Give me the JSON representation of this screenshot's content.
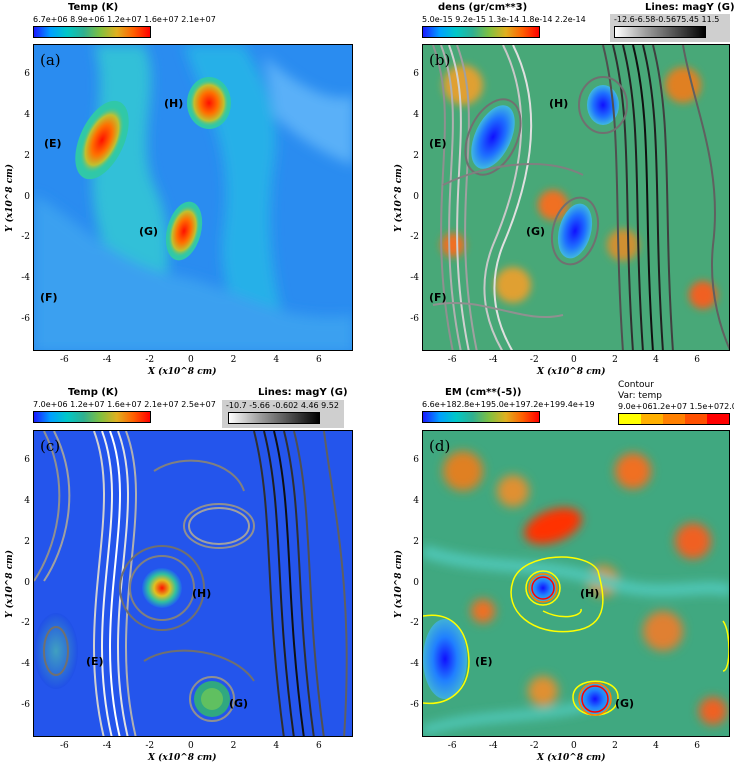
{
  "chart_data": [
    {
      "type": "heatmap",
      "panel_label": "(a)",
      "colorbar": {
        "title": "Temp (K)",
        "ticks": "6.7e+06 8.9e+06 1.2e+07 1.6e+07 2.1e+07"
      },
      "regions": [
        "(H)",
        "(E)",
        "(G)",
        "(F)"
      ],
      "xlabel": "X  (x10^8 cm)",
      "ylabel": "Y  (x10^8 cm)",
      "xticks": [
        "-6",
        "-4",
        "-2",
        "0",
        "2",
        "4",
        "6"
      ],
      "yticks": [
        "6",
        "4",
        "2",
        "0",
        "-2",
        "-4",
        "-6"
      ],
      "xlim": [
        -7.5,
        7.5
      ],
      "ylim": [
        -7.5,
        7.5
      ]
    },
    {
      "type": "heatmap",
      "panel_label": "(b)",
      "colorbar": {
        "title": "dens (gr/cm**3)",
        "ticks": "5.0e-15 9.2e-15 1.3e-14 1.8e-14 2.2e-14"
      },
      "lines_bar": {
        "title": "Lines: magY (G)",
        "ticks": "-12.6-6.58-0.5675.45 11.5"
      },
      "regions": [
        "(H)",
        "(E)",
        "(G)",
        "(F)"
      ],
      "xlabel": "X  (x10^8 cm)",
      "ylabel": "Y  (x10^8 cm)",
      "xticks": [
        "-6",
        "-4",
        "-2",
        "0",
        "2",
        "4",
        "6"
      ],
      "yticks": [
        "6",
        "4",
        "2",
        "0",
        "-2",
        "-4",
        "-6"
      ],
      "xlim": [
        -7.5,
        7.5
      ],
      "ylim": [
        -7.5,
        7.5
      ]
    },
    {
      "type": "heatmap",
      "panel_label": "(c)",
      "colorbar": {
        "title": "Temp (K)",
        "ticks": "7.0e+06 1.2e+07 1.6e+07 2.1e+07 2.5e+07"
      },
      "lines_bar": {
        "title": "Lines: magY (G)",
        "ticks": "-10.7 -5.66 -0.602 4.46 9.52"
      },
      "regions": [
        "(H)",
        "(E)",
        "(G)"
      ],
      "xlabel": "X  (x10^8 cm)",
      "ylabel": "Y  (x10^8 cm)",
      "xticks": [
        "-6",
        "-4",
        "-2",
        "0",
        "2",
        "4",
        "6"
      ],
      "yticks": [
        "6",
        "4",
        "2",
        "0",
        "-2",
        "-4",
        "-6"
      ],
      "xlim": [
        -7.5,
        7.5
      ],
      "ylim": [
        -7.5,
        7.5
      ]
    },
    {
      "type": "heatmap",
      "panel_label": "(d)",
      "colorbar": {
        "title": "EM (cm**(-5))",
        "ticks": "6.6e+182.8e+195.0e+197.2e+199.4e+19"
      },
      "contour_bar": {
        "title": "Contour",
        "subtitle": "Var: temp",
        "ticks": "9.0e+061.2e+07 1.5e+072.0e+07",
        "colors": [
          "#ffff00",
          "#ffb000",
          "#ff8000",
          "#ff5000",
          "#ff0000"
        ]
      },
      "regions": [
        "(H)",
        "(E)",
        "(G)"
      ],
      "xlabel": "X  (x10^8 cm)",
      "ylabel": "Y  (x10^8 cm)",
      "xticks": [
        "-6",
        "-4",
        "-2",
        "0",
        "2",
        "4",
        "6"
      ],
      "yticks": [
        "6",
        "4",
        "2",
        "0",
        "-2",
        "-4",
        "-6"
      ],
      "xlim": [
        -7.5,
        7.5
      ],
      "ylim": [
        -7.5,
        7.5
      ]
    }
  ],
  "colors": {
    "rainbow": [
      "#1a1aff",
      "#0090ff",
      "#00c8c8",
      "#20b890",
      "#60c040",
      "#d0c020",
      "#ff6000",
      "#ff0000"
    ],
    "gray_lines": [
      "#ffffff",
      "#b0b0b0",
      "#606060",
      "#000000"
    ]
  }
}
